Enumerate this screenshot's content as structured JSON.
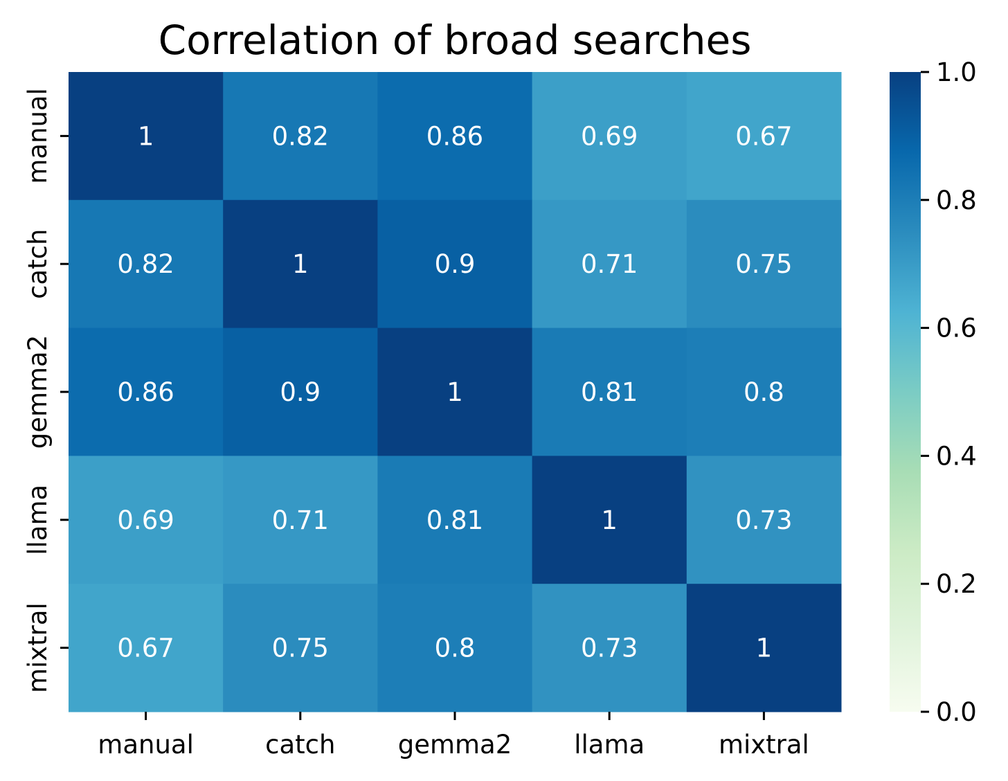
{
  "chart_data": {
    "type": "heatmap",
    "title": "Correlation of broad searches",
    "xlabel": "",
    "ylabel": "",
    "x_categories": [
      "manual",
      "catch",
      "gemma2",
      "llama",
      "mixtral"
    ],
    "y_categories": [
      "manual",
      "catch",
      "gemma2",
      "llama",
      "mixtral"
    ],
    "values": [
      [
        1,
        0.82,
        0.86,
        0.69,
        0.67
      ],
      [
        0.82,
        1,
        0.9,
        0.71,
        0.75
      ],
      [
        0.86,
        0.9,
        1,
        0.81,
        0.8
      ],
      [
        0.69,
        0.71,
        0.81,
        1,
        0.73
      ],
      [
        0.67,
        0.75,
        0.8,
        0.73,
        1
      ]
    ],
    "value_labels": [
      [
        "1",
        "0.82",
        "0.86",
        "0.69",
        "0.67"
      ],
      [
        "0.82",
        "1",
        "0.9",
        "0.71",
        "0.75"
      ],
      [
        "0.86",
        "0.9",
        "1",
        "0.81",
        "0.8"
      ],
      [
        "0.69",
        "0.71",
        "0.81",
        "1",
        "0.73"
      ],
      [
        "0.67",
        "0.75",
        "0.8",
        "0.73",
        "1"
      ]
    ],
    "colormap": "GnBu",
    "color_range": [
      0,
      1
    ],
    "colorbar": {
      "ticks": [
        0,
        0.2,
        0.4,
        0.6,
        0.8,
        1
      ],
      "tick_labels": [
        "0.0",
        "0.2",
        "0.4",
        "0.6",
        "0.8",
        "1.0"
      ]
    },
    "annotation_color": "#ffffff",
    "grid": false,
    "legend": "none"
  }
}
